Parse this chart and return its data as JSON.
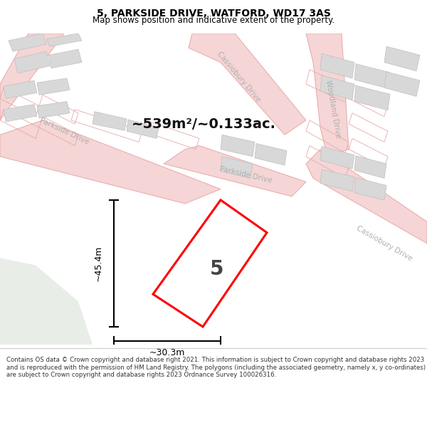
{
  "title": "5, PARKSIDE DRIVE, WATFORD, WD17 3AS",
  "subtitle": "Map shows position and indicative extent of the property.",
  "footer": "Contains OS data © Crown copyright and database right 2021. This information is subject to Crown copyright and database rights 2023 and is reproduced with the permission of HM Land Registry. The polygons (including the associated geometry, namely x, y co-ordinates) are subject to Crown copyright and database rights 2023 Ordnance Survey 100026316.",
  "area_text": "~539m²/~0.133ac.",
  "dim_width": "~30.3m",
  "dim_height": "~45.4m",
  "plot_label": "5",
  "bg_map_color": "#f2f2f0",
  "bg_title_color": "#ffffff",
  "bg_footer_color": "#ffffff",
  "road_fill_color": "#f5d5d5",
  "road_edge_color": "#e8a8a8",
  "building_color": "#d8d8d8",
  "building_edge_color": "#c0c0c0",
  "plot_outline_color": "#ff0000",
  "plot_fill_color": "#ffffff",
  "dim_line_color": "#000000",
  "road_label_color": "#b0b0b0",
  "title_color": "#000000",
  "footer_color": "#333333",
  "green_area_color": "#e8ede8",
  "separator_color": "#cccccc",
  "title_fontsize": 10,
  "subtitle_fontsize": 8.5,
  "area_fontsize": 14,
  "dim_fontsize": 9,
  "plot_label_fontsize": 20,
  "road_label_fontsize": 7.5,
  "footer_fontsize": 6.2
}
